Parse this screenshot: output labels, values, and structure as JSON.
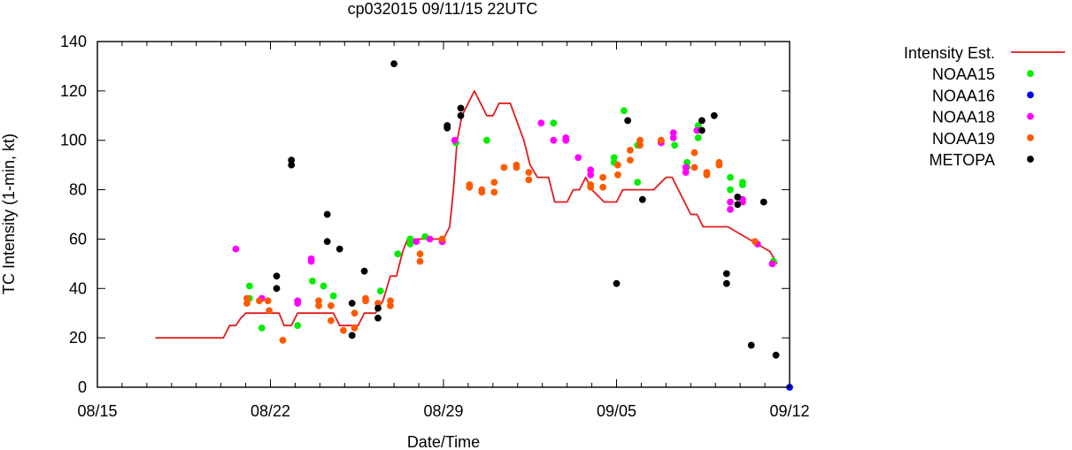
{
  "chart_data": {
    "type": "scatter",
    "title": "cp032015 09/11/15 22UTC",
    "xlabel": "Date/Time",
    "ylabel": "TC Intensity (1-min, kt)",
    "xlim": [
      0,
      28
    ],
    "ylim": [
      0,
      140
    ],
    "x_unit": "days from 08/15",
    "xticks": [
      {
        "value": 0,
        "label": "08/15"
      },
      {
        "value": 7,
        "label": "08/22"
      },
      {
        "value": 14,
        "label": "08/29"
      },
      {
        "value": 21,
        "label": "09/05"
      },
      {
        "value": 28,
        "label": "09/12"
      }
    ],
    "yticks": [
      0,
      20,
      40,
      60,
      80,
      100,
      120,
      140
    ],
    "legend_position": "right",
    "grid": false,
    "series": [
      {
        "name": "Intensity Est.",
        "style": "line",
        "color": "#e31a1c",
        "x": [
          2.35,
          5.1,
          5.35,
          5.6,
          5.8,
          6.0,
          7.35,
          7.55,
          7.85,
          8.1,
          9.55,
          9.8,
          10.55,
          10.8,
          11.25,
          11.55,
          11.85,
          12.1,
          12.35,
          12.55,
          14.0,
          14.25,
          14.4,
          14.55,
          14.75,
          15.0,
          15.25,
          15.5,
          15.75,
          16.0,
          16.25,
          16.7,
          17.25,
          17.5,
          17.8,
          18.25,
          18.5,
          18.8,
          19.0,
          19.25,
          19.5,
          19.75,
          20.0,
          20.5,
          21.0,
          21.25,
          21.5,
          22.0,
          22.5,
          23.0,
          23.25,
          23.5,
          24.0,
          24.25,
          24.5,
          25.25,
          25.5,
          27.2,
          27.5
        ],
        "y": [
          20,
          20,
          25,
          25,
          28,
          30,
          30,
          25,
          25,
          30,
          30,
          25,
          25,
          30,
          30,
          35,
          45,
          45,
          55,
          60,
          60,
          65,
          80,
          100,
          110,
          115,
          120,
          115,
          110,
          110,
          115,
          115,
          100,
          90,
          85,
          85,
          75,
          75,
          75,
          80,
          80,
          85,
          80,
          75,
          75,
          80,
          80,
          80,
          80,
          85,
          85,
          80,
          70,
          70,
          65,
          65,
          65,
          55,
          50
        ]
      },
      {
        "name": "NOAA15",
        "style": "points",
        "color": "#00ee00",
        "points": [
          [
            6.15,
            41
          ],
          [
            6.15,
            36
          ],
          [
            6.65,
            24
          ],
          [
            8.1,
            25
          ],
          [
            8.7,
            43
          ],
          [
            9.15,
            41
          ],
          [
            9.55,
            37
          ],
          [
            11.45,
            39
          ],
          [
            12.15,
            54
          ],
          [
            12.65,
            60
          ],
          [
            12.65,
            58
          ],
          [
            13.25,
            61
          ],
          [
            14.5,
            99
          ],
          [
            15.75,
            100
          ],
          [
            18.45,
            107
          ],
          [
            20.9,
            93
          ],
          [
            20.9,
            91
          ],
          [
            21.3,
            112
          ],
          [
            21.85,
            98
          ],
          [
            21.85,
            83
          ],
          [
            23.35,
            98
          ],
          [
            23.85,
            91
          ],
          [
            23.85,
            89
          ],
          [
            24.3,
            106
          ],
          [
            24.3,
            101
          ],
          [
            25.6,
            85
          ],
          [
            25.6,
            80
          ],
          [
            26.1,
            83
          ],
          [
            26.1,
            82
          ],
          [
            27.35,
            51
          ]
        ]
      },
      {
        "name": "NOAA16",
        "style": "points",
        "color": "#0000ee",
        "points": [
          [
            28.0,
            0
          ]
        ]
      },
      {
        "name": "NOAA18",
        "style": "points",
        "color": "#ff00ff",
        "points": [
          [
            5.6,
            56
          ],
          [
            6.65,
            36
          ],
          [
            8.1,
            35
          ],
          [
            8.1,
            34
          ],
          [
            8.65,
            52
          ],
          [
            8.65,
            51
          ],
          [
            12.9,
            59
          ],
          [
            13.45,
            60
          ],
          [
            13.95,
            59
          ],
          [
            13.95,
            59
          ],
          [
            13.95,
            59
          ],
          [
            14.45,
            100
          ],
          [
            17.95,
            107
          ],
          [
            18.45,
            100
          ],
          [
            18.95,
            101
          ],
          [
            18.95,
            100
          ],
          [
            19.45,
            93
          ],
          [
            19.95,
            88
          ],
          [
            19.95,
            86
          ],
          [
            22.8,
            100
          ],
          [
            22.8,
            99
          ],
          [
            23.3,
            103
          ],
          [
            23.3,
            101
          ],
          [
            23.8,
            89
          ],
          [
            23.8,
            87
          ],
          [
            24.25,
            104
          ],
          [
            25.6,
            75
          ],
          [
            25.6,
            72
          ],
          [
            26.1,
            76
          ],
          [
            26.1,
            75
          ],
          [
            26.7,
            58
          ],
          [
            27.3,
            50
          ]
        ]
      },
      {
        "name": "NOAA19",
        "style": "points",
        "color": "#ff5a00",
        "points": [
          [
            6.05,
            36
          ],
          [
            6.05,
            34
          ],
          [
            6.55,
            35
          ],
          [
            6.9,
            35
          ],
          [
            6.95,
            31
          ],
          [
            7.5,
            19
          ],
          [
            8.95,
            35
          ],
          [
            8.95,
            33
          ],
          [
            9.45,
            33
          ],
          [
            9.45,
            27
          ],
          [
            9.95,
            23
          ],
          [
            10.4,
            30
          ],
          [
            10.4,
            24
          ],
          [
            10.85,
            36
          ],
          [
            10.85,
            35
          ],
          [
            11.35,
            34
          ],
          [
            11.85,
            35
          ],
          [
            11.85,
            33
          ],
          [
            13.05,
            54
          ],
          [
            13.05,
            51
          ],
          [
            13.95,
            60
          ],
          [
            15.05,
            82
          ],
          [
            15.05,
            81
          ],
          [
            15.55,
            80
          ],
          [
            15.55,
            79
          ],
          [
            16.05,
            83
          ],
          [
            16.05,
            79
          ],
          [
            16.45,
            89
          ],
          [
            16.95,
            90
          ],
          [
            16.95,
            89
          ],
          [
            17.45,
            87
          ],
          [
            17.45,
            84
          ],
          [
            19.95,
            82
          ],
          [
            19.95,
            81
          ],
          [
            20.45,
            85
          ],
          [
            20.45,
            81
          ],
          [
            21.05,
            90
          ],
          [
            21.05,
            86
          ],
          [
            21.55,
            96
          ],
          [
            21.55,
            92
          ],
          [
            21.95,
            100
          ],
          [
            21.95,
            98
          ],
          [
            22.8,
            100
          ],
          [
            24.15,
            95
          ],
          [
            24.15,
            89
          ],
          [
            24.65,
            87
          ],
          [
            24.65,
            86
          ],
          [
            25.15,
            91
          ],
          [
            25.15,
            90
          ],
          [
            26.6,
            59
          ]
        ]
      },
      {
        "name": "METOPA",
        "style": "points",
        "color": "#000000",
        "points": [
          [
            7.25,
            45
          ],
          [
            7.25,
            40
          ],
          [
            7.85,
            92
          ],
          [
            7.85,
            90
          ],
          [
            9.3,
            70
          ],
          [
            9.3,
            59
          ],
          [
            9.8,
            56
          ],
          [
            10.3,
            34
          ],
          [
            10.3,
            21
          ],
          [
            10.8,
            47
          ],
          [
            11.35,
            32
          ],
          [
            11.35,
            28
          ],
          [
            12.0,
            131
          ],
          [
            14.15,
            106
          ],
          [
            14.15,
            105
          ],
          [
            14.7,
            113
          ],
          [
            14.7,
            110
          ],
          [
            21.0,
            42
          ],
          [
            21.45,
            108
          ],
          [
            22.05,
            76
          ],
          [
            24.45,
            108
          ],
          [
            24.45,
            104
          ],
          [
            24.95,
            110
          ],
          [
            25.45,
            46
          ],
          [
            25.45,
            42
          ],
          [
            25.9,
            77
          ],
          [
            25.9,
            74
          ],
          [
            26.45,
            17
          ],
          [
            26.95,
            75
          ],
          [
            27.45,
            13
          ]
        ]
      }
    ]
  }
}
